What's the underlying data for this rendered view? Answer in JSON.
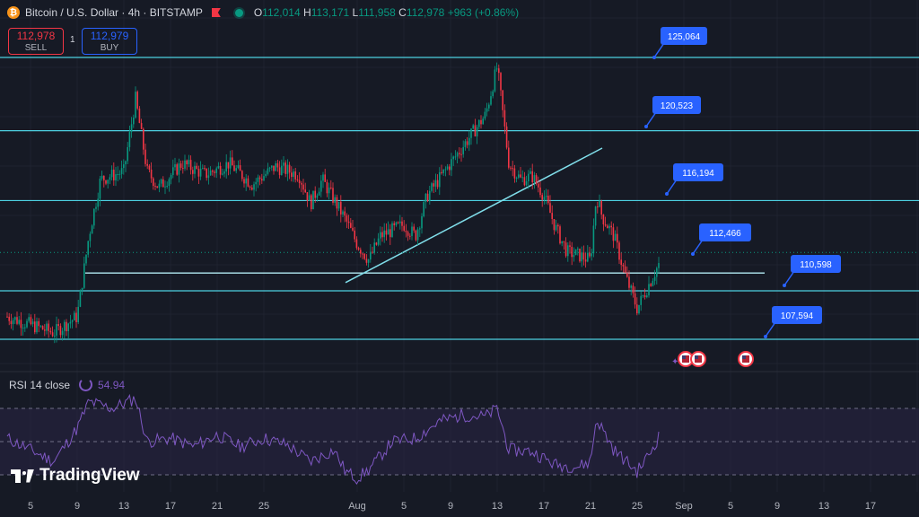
{
  "header": {
    "symbol": "Bitcoin / U.S. Dollar · 4h · BITSTAMP",
    "btc_glyph": "₿",
    "open_label": "O",
    "open": "112,014",
    "high_label": "H",
    "high": "113,171",
    "low_label": "L",
    "low": "111,958",
    "close_label": "C",
    "close": "112,978",
    "change": "+963 (+0.86%)"
  },
  "trade": {
    "sell_price": "112,978",
    "sell_label": "SELL",
    "buy_price": "112,979",
    "buy_label": "BUY",
    "spread": "1"
  },
  "rsi": {
    "label": "RSI 14 close",
    "value": "54.94"
  },
  "brand": {
    "name": "TradingView"
  },
  "colors": {
    "up": "#089981",
    "down": "#f23645",
    "level": "#4dd0e1",
    "callout": "#2962ff",
    "rsi": "#7e57c2",
    "bg": "#161a25"
  },
  "chart_data": {
    "type": "candlestick",
    "timeframe": "4h",
    "x_axis_labels": [
      "5",
      "9",
      "13",
      "17",
      "21",
      "25",
      "Aug",
      "5",
      "9",
      "13",
      "17",
      "21",
      "25",
      "Sep",
      "5",
      "9",
      "13",
      "17"
    ],
    "y_range": [
      105600,
      126500
    ],
    "price_levels": [
      125064,
      120523,
      116194,
      110598,
      107594
    ],
    "callouts": [
      {
        "label": "125,064",
        "value": 125064
      },
      {
        "label": "120,523",
        "value": 120523
      },
      {
        "label": "116,194",
        "value": 116194
      },
      {
        "label": "112,466",
        "value": 112466
      },
      {
        "label": "110,598",
        "value": 110598
      },
      {
        "label": "107,594",
        "value": 107594
      }
    ],
    "support_line": {
      "value": 111700
    },
    "trend_line": {
      "from": {
        "date": "Aug 2",
        "value": 111500
      },
      "to": {
        "date": "Aug 24",
        "value": 120000
      }
    },
    "current_price": 112978,
    "price_path": [
      [
        "Jul 3",
        109000
      ],
      [
        "Jul 5",
        108500
      ],
      [
        "Jul 7",
        108000
      ],
      [
        "Jul 9",
        109000
      ],
      [
        "Jul 10",
        114000
      ],
      [
        "Jul 11",
        117500
      ],
      [
        "Jul 13",
        118000
      ],
      [
        "Jul 14",
        122500
      ],
      [
        "Jul 15",
        118000
      ],
      [
        "Jul 16",
        117000
      ],
      [
        "Jul 18",
        118500
      ],
      [
        "Jul 20",
        117800
      ],
      [
        "Jul 22",
        118500
      ],
      [
        "Jul 24",
        117200
      ],
      [
        "Jul 26",
        118300
      ],
      [
        "Jul 28",
        117800
      ],
      [
        "Jul 29",
        116000
      ],
      [
        "Jul 30",
        117500
      ],
      [
        "Aug 1",
        115000
      ],
      [
        "Aug 2",
        113500
      ],
      [
        "Aug 3",
        112500
      ],
      [
        "Aug 4",
        114000
      ],
      [
        "Aug 6",
        114700
      ],
      [
        "Aug 7",
        114000
      ],
      [
        "Aug 8",
        116500
      ],
      [
        "Aug 10",
        118500
      ],
      [
        "Aug 12",
        120500
      ],
      [
        "Aug 13",
        121500
      ],
      [
        "Aug 14",
        124500
      ],
      [
        "Aug 15",
        118500
      ],
      [
        "Aug 16",
        117500
      ],
      [
        "Aug 17",
        117700
      ],
      [
        "Aug 18",
        116500
      ],
      [
        "Aug 19",
        114500
      ],
      [
        "Aug 20",
        113000
      ],
      [
        "Aug 21",
        112800
      ],
      [
        "Aug 22",
        112500
      ],
      [
        "Aug 22.5",
        116500
      ],
      [
        "Aug 23",
        115200
      ],
      [
        "Aug 24",
        114000
      ],
      [
        "Aug 25",
        111500
      ],
      [
        "Aug 26",
        109500
      ],
      [
        "Aug 27",
        111000
      ],
      [
        "Aug 28",
        112466
      ]
    ],
    "rsi_series": [
      [
        "Jul 3",
        52
      ],
      [
        "Jul 5",
        45
      ],
      [
        "Jul 7",
        38
      ],
      [
        "Jul 9",
        58
      ],
      [
        "Jul 10",
        74
      ],
      [
        "Jul 12",
        70
      ],
      [
        "Jul 14",
        76
      ],
      [
        "Jul 15",
        50
      ],
      [
        "Jul 17",
        52
      ],
      [
        "Jul 19",
        47
      ],
      [
        "Jul 21",
        54
      ],
      [
        "Jul 23",
        47
      ],
      [
        "Jul 25",
        52
      ],
      [
        "Jul 27",
        48
      ],
      [
        "Jul 29",
        38
      ],
      [
        "Jul 31",
        45
      ],
      [
        "Aug 1",
        32
      ],
      [
        "Aug 2",
        28
      ],
      [
        "Aug 3",
        33
      ],
      [
        "Aug 5",
        50
      ],
      [
        "Aug 7",
        52
      ],
      [
        "Aug 9",
        62
      ],
      [
        "Aug 11",
        66
      ],
      [
        "Aug 13",
        65
      ],
      [
        "Aug 14",
        70
      ],
      [
        "Aug 15",
        45
      ],
      [
        "Aug 17",
        44
      ],
      [
        "Aug 19",
        36
      ],
      [
        "Aug 21",
        35
      ],
      [
        "Aug 22",
        38
      ],
      [
        "Aug 22.5",
        64
      ],
      [
        "Aug 24",
        45
      ],
      [
        "Aug 26",
        32
      ],
      [
        "Aug 27",
        42
      ],
      [
        "Aug 28",
        54.94
      ]
    ]
  }
}
